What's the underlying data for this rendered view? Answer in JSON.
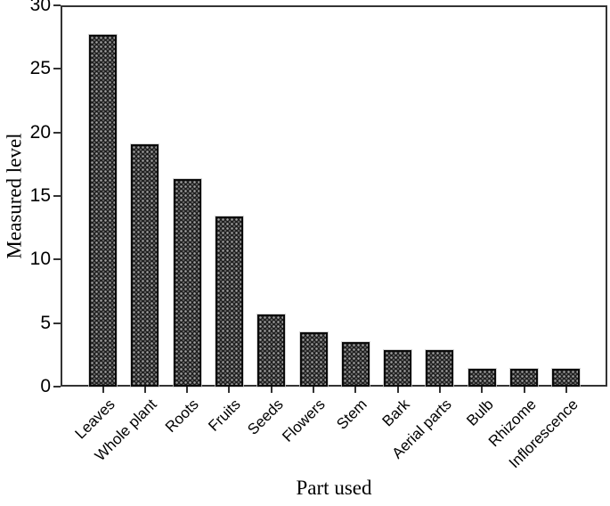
{
  "chart_data": {
    "type": "bar",
    "title": "",
    "xlabel": "Part used",
    "ylabel": "Measured level",
    "categories": [
      "Leaves",
      "Whole plant",
      "Roots",
      "Fruits",
      "Seeds",
      "Flowers",
      "Stem",
      "Bark",
      "Aerial parts",
      "Bulb",
      "Rhizome",
      "Inflorescence"
    ],
    "values": [
      27.7,
      19.1,
      16.3,
      13.4,
      5.7,
      4.3,
      3.5,
      2.9,
      2.9,
      1.4,
      1.4,
      1.4
    ],
    "ylim": [
      0,
      30
    ],
    "yticks": [
      0,
      5,
      10,
      15,
      20,
      25,
      30
    ],
    "grid": false,
    "legend": "none",
    "plot_frame": "full-box",
    "bar_fill_color": "#1c1c1c",
    "bar_pattern": "woven-dot-hatch",
    "bar_pattern_dot_color": "#a2a2a2",
    "bar_border_color": "#0b0b0b",
    "axis_color": "#333333",
    "text_color": "#000000",
    "background_color": "#ffffff"
  }
}
